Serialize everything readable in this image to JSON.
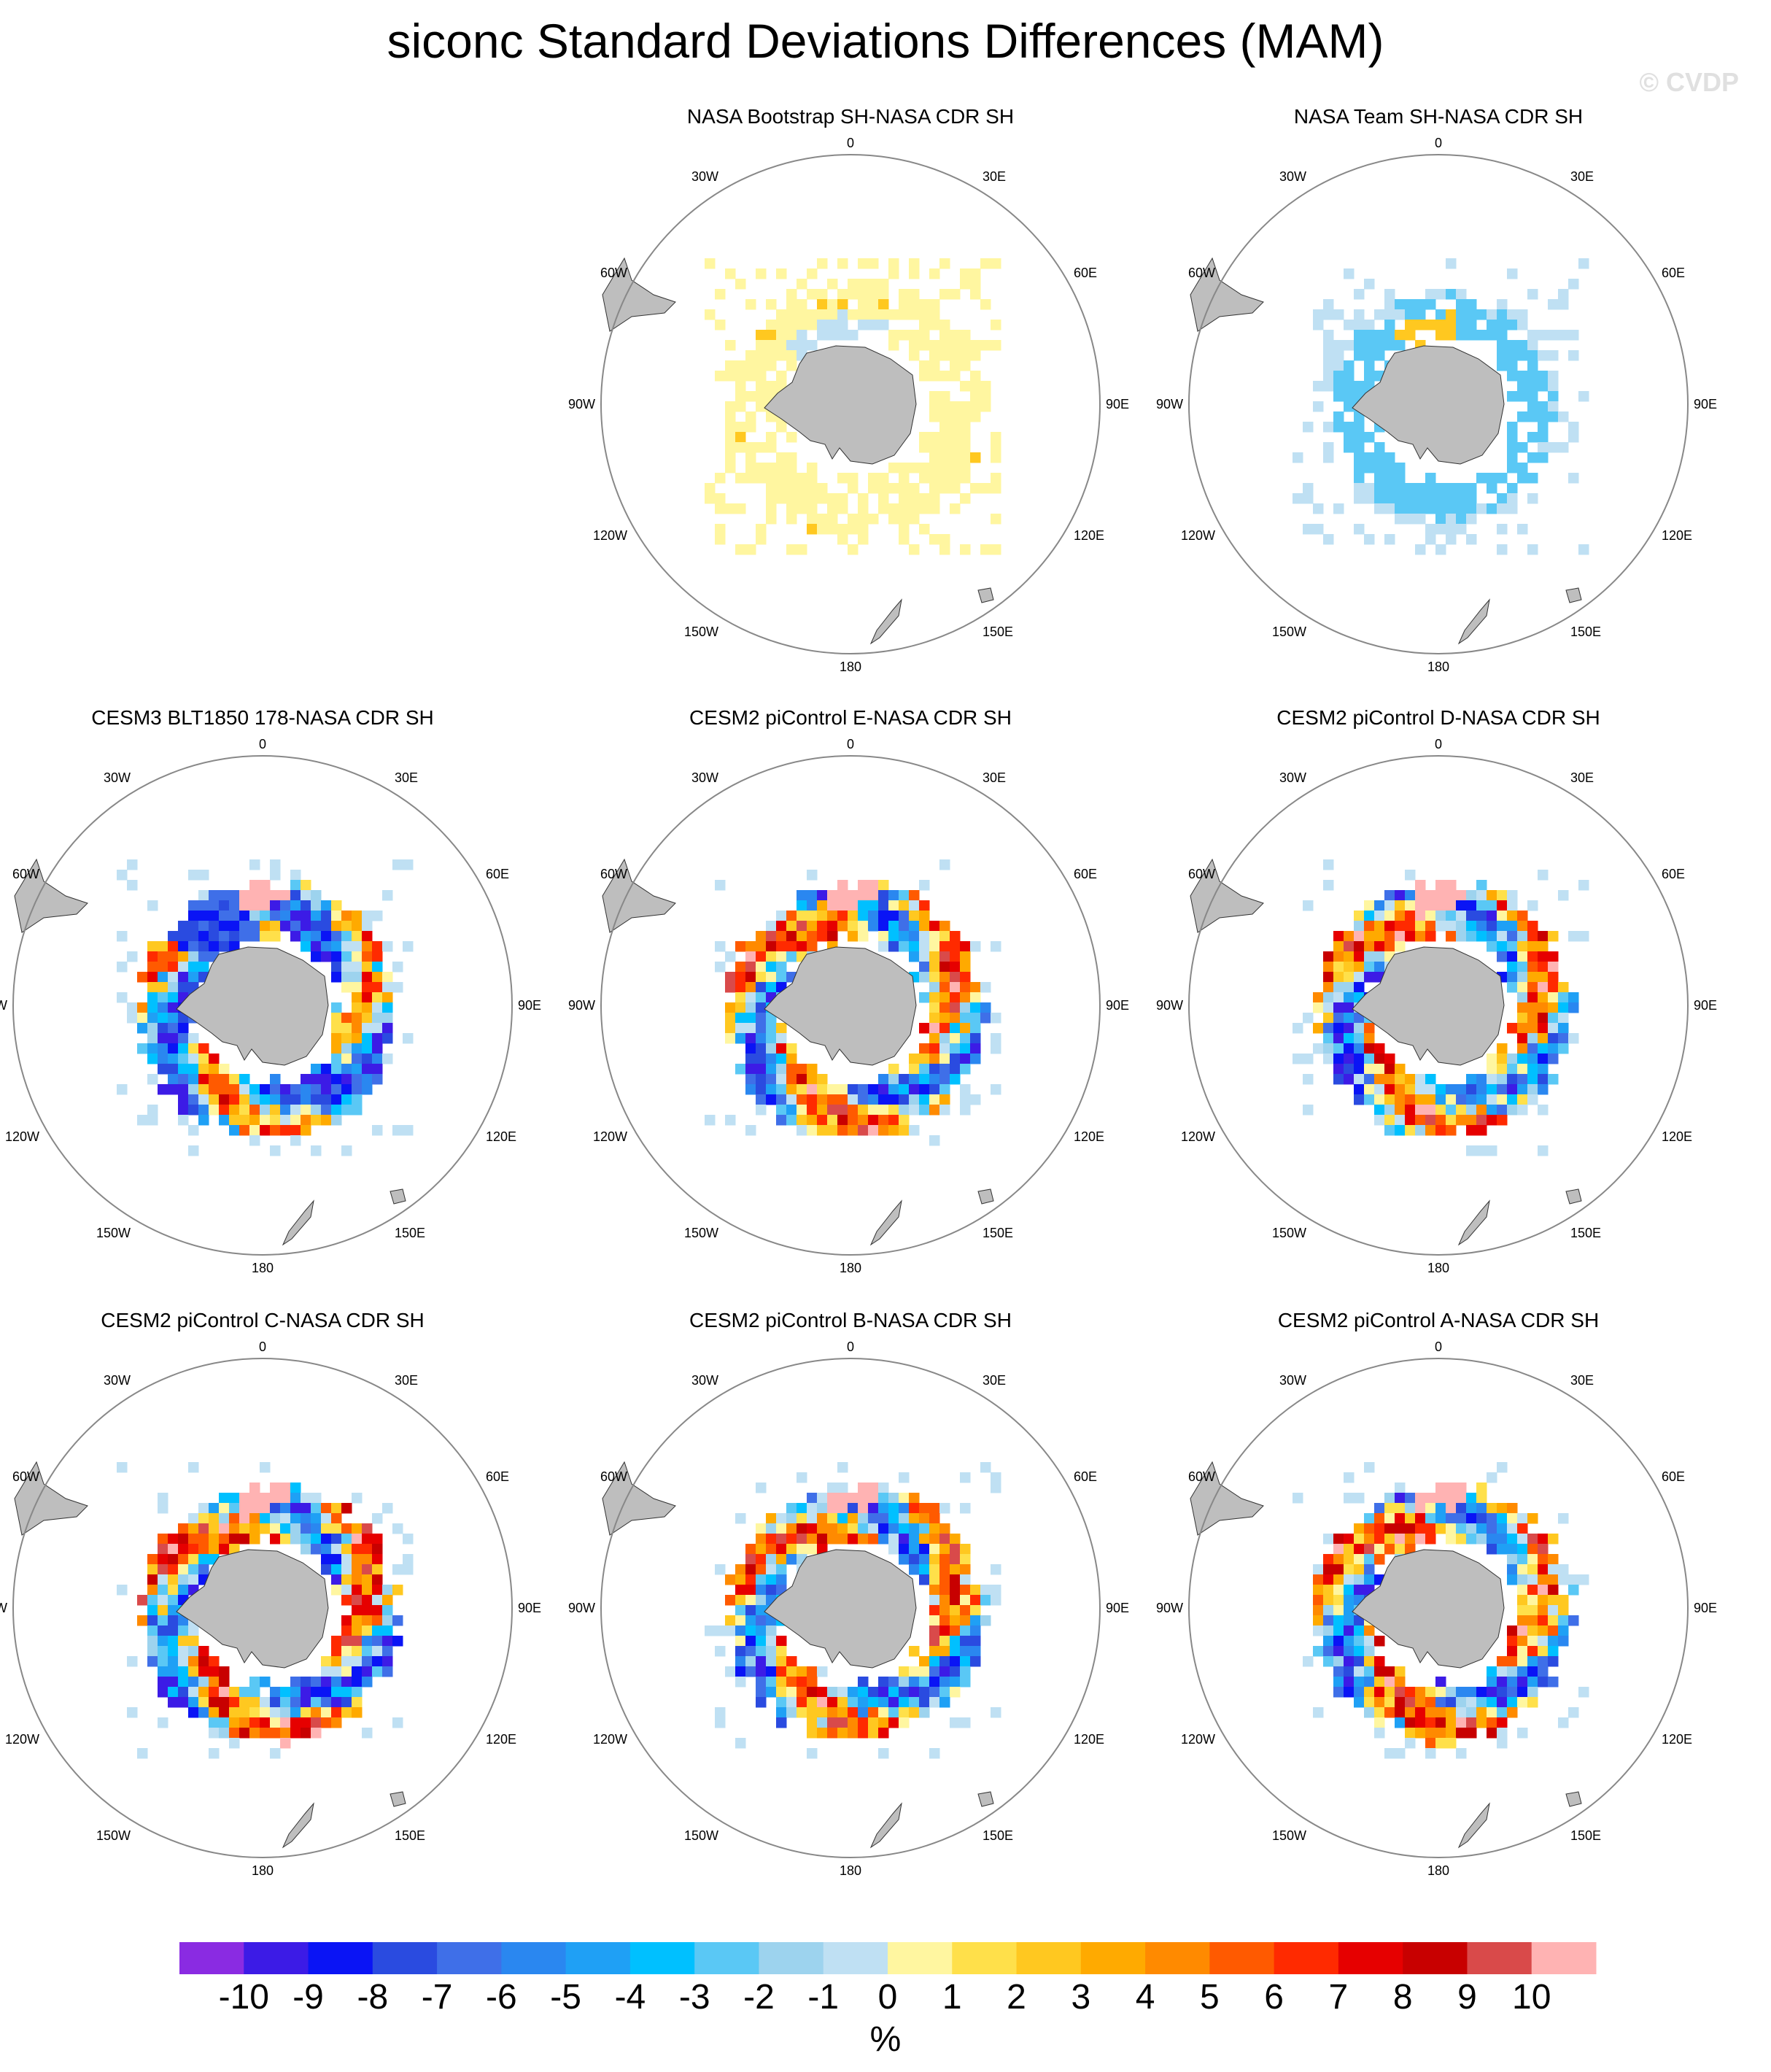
{
  "title": "siconc Standard Deviations Differences (MAM)",
  "watermark": "© CVDP",
  "panels": [
    {
      "title": "NASA Bootstrap SH-NASA CDR SH",
      "pattern": "bootstrap"
    },
    {
      "title": "NASA Team SH-NASA CDR SH",
      "pattern": "team"
    },
    {
      "title": "CESM3 BLT1850 178-NASA CDR SH",
      "pattern": "cesm3"
    },
    {
      "title": "CESM2 piControl E-NASA CDR SH",
      "pattern": "cesm2"
    },
    {
      "title": "CESM2 piControl D-NASA CDR SH",
      "pattern": "cesm2"
    },
    {
      "title": "CESM2 piControl C-NASA CDR SH",
      "pattern": "cesm2"
    },
    {
      "title": "CESM2 piControl B-NASA CDR SH",
      "pattern": "cesm2"
    },
    {
      "title": "CESM2 piControl A-NASA CDR SH",
      "pattern": "cesm2"
    }
  ],
  "map_labels": {
    "top": "0",
    "bottom": "180",
    "left": "90W",
    "right": "90E",
    "ul30": "30W",
    "ur30": "30E",
    "ul60": "60W",
    "ur60": "60E",
    "ll120": "120W",
    "lr120": "120E",
    "ll150": "150W",
    "lr150": "150E"
  },
  "colorbar": {
    "unit": "%",
    "tick_labels": [
      "-10",
      "-9",
      "-8",
      "-7",
      "-6",
      "-5",
      "-4",
      "-3",
      "-2",
      "-1",
      "0",
      "1",
      "2",
      "3",
      "4",
      "5",
      "6",
      "7",
      "8",
      "9",
      "10"
    ],
    "colors": [
      "#8a2be2",
      "#3c1be6",
      "#0a14f5",
      "#2a4be0",
      "#3f6fe8",
      "#2a87f0",
      "#1fa0f5",
      "#00c0ff",
      "#5ac8f5",
      "#9dd3ee",
      "#bfe0f3",
      "#fff6a0",
      "#ffe04a",
      "#ffc820",
      "#ffaa00",
      "#ff8a00",
      "#ff5a00",
      "#ff2a00",
      "#e60000",
      "#c80000",
      "#d94a4a",
      "#ffb3b3"
    ]
  },
  "land_color": "#bebebe"
}
